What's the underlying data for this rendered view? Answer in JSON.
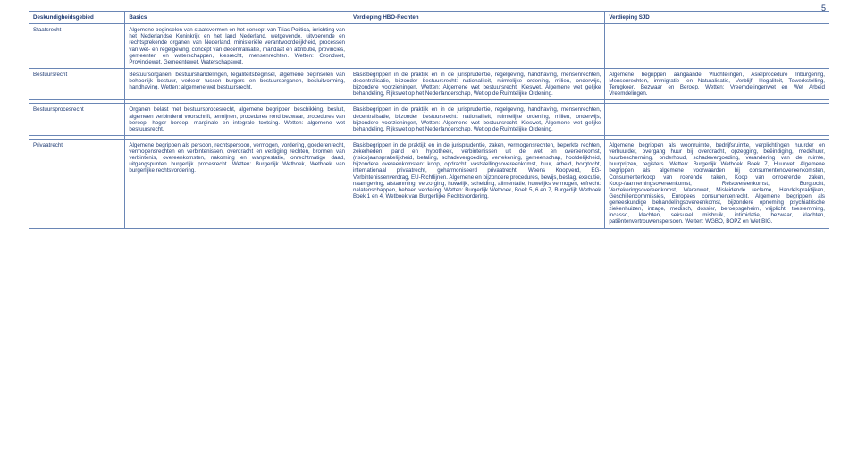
{
  "pageNumber": "5",
  "headers": {
    "col1": "Deskundigheidsgebied",
    "col2": "Basics",
    "col3": "Verdieping HBO-Rechten",
    "col4": "Verdieping SJD"
  },
  "rows": [
    {
      "label": "Staatsrecht",
      "basics": "Algemene beginselen van staatsvormen en het concept van Trias Politica, inrichting van het Nederlandse Koninkrijk en het land Nederland, wetgevende, uitvoerende en rechtsprekende organen van Nederland, ministeriële verantwoordelijkheid, processen van wet- en regelgeving, concept van decentralisatie, mandaat en attributie, provincies, gemeenten en waterschappen, kiesrecht, mensenrechten. Wetten: Grondwet, Provinciewet, Gemeentewet, Waterschapswet,",
      "hbo": "",
      "sjd": ""
    },
    {
      "label": "Bestuursrecht",
      "basics": "Bestuursorganen, bestuurshandelingen, legaliteitsbeginsel, algemene beginselen van behoorlijk bestuur, verkeer tussen burgers en bestuursorganen, besluitvorming, handhaving. Wetten: algemene wet bestuursrecht.",
      "hbo": "Basisbegrippen in de praktijk en in de jurisprudentie, regelgeving, handhaving, mensenrechten, decentralisatie, bijzonder bestuursrecht: nationaliteit, ruimtelijke ordening, milieu, onderwijs, bijzondere voorzieningen, Wetten: Algemene wet bestuursrecht, Kieswet, Algemene wet gelijke behandeling, Rijkswet op het Nederlanderschap, Wet op de Ruimtelijke Ordening.",
      "sjd": "Algemene begrippen aangaande Vluchtelingen, Asielprocedure Inburgering, Mensenrechten, immigratie- en Naturalisatie, Verblijf, Illegaliteit, Tewerkstelling, Terugkeer, Bezwaar en Beroep. Wetten: Vreemdelingenwet en Wet Arbeid Vreemdelingen."
    },
    {
      "label": "Bestuursprocesrecht",
      "basics": "Organen belast met bestuursprocesrecht, algemene begrippen beschikking, besluit, algemeen verbindend voorschrift, termijnen, procedures rond bezwaar, procedures van beroep, hoger beroep, marginale en integrale toetsing. Wetten: algemene wet bestuursrecht.",
      "hbo": "Basisbegrippen in de praktijk en in de jurisprudentie, regelgeving, handhaving, mensenrechten, decentralisatie, bijzonder bestuursrecht: nationaliteit, ruimtelijke ordening, milieu, onderwijs, bijzondere voorzieningen, Wetten: Algemene wet bestuursrecht, Kieswet, Algemene wet gelijke behandeling, Rijkswet op het Nederlanderschap, Wet op de Ruimtelijke Ordening.",
      "sjd": ""
    },
    {
      "label": "Privaatrecht",
      "basics": "Algemene begrippen als persoon, rechtspersoon, vermogen, vordering, goederenrecht, vermogensrechten en verbintenissen, overdracht en vestiging rechten, bronnen van verbintenis, overeenkomsten, nakoming en wanprestatie, onrechtmatige daad, uitgangspunten burgerlijk procesrecht. Wetten: Burgerlijk Wetboek, Wetboek van burgerlijke rechtsvordering.",
      "hbo": "Basisbegrippen in de praktijk en in de jurisprudentie, zaken, vermogensrechten, beperkte rechten, zekerheden: pand en hypotheek, verbintenissen uit de wet en overeenkomst, (risico)aansprakelijkheid, betaling, schadevergoeding, verrekening, gemeenschap, hoofdelijkheid, bijzondere overeenkomsten: koop, opdracht, vaststellingsovereenkomst, huur, arbeid, borgtocht, internationaal privaatrecht, geharmoniseerd privaatrecht: Weens Koopverd, EG-Verbintenissenverdrag, EU-Richtlijnen. Algemene en bijzondere procedures, bewijs, beslag, executie, naamgeving, afstamming, verzorging, huwelijk, scheiding, alimentatie, huwelijks vermogen, erfrecht: nalatenschappen, beheer, verdeling. Wetten: Burgerlijk Wetboek, Boek 5, 6 en 7, Burgerlijk Wetboek Boek 1 en 4, Wetboek van Burgerlijke Rechtsvordering.",
      "sjd": "Algemene begrippen als woonruimte, bedrijfsruimte, verplichtingen huurder en verhuurder, overgang huur bij overdracht, opzegging, beëindiging, medehuur, huurbescherming, onderhoud, schadevergoeding, verandering van de ruimte, huurprijzen, registers. Wetten: Burgerlijk Wetboek Boek 7, Huurwet. Algemene begrippen als algemene voorwaarden bij consumentenovereenkomsten, Consumentenkoop van roerende zaken, Koop van onroerende zaken, Koop-/aannemingsovereenkomst, Reisovereenkomst, Borgtocht, Verzekeringsovereenkomst, Warenwet, Misleidende reclame, Handelspraktijken, Geschillencommissies, Europees consumentenrecht. Algemene begrippen als geneeskundige behandelingsovereenkomst, bijzondere opneming psychiatrische ziekenhuizen, inzage, medisch, dossier, beroepsgeheim, vrijplicht, toestemming, incasso, klachten, seksueel misbruik, intimidatie, bezwaar, klachten, patiëntenvertrouwenspersoon. Wetten: WGBO, BOPZ en Wet BIG."
    }
  ]
}
